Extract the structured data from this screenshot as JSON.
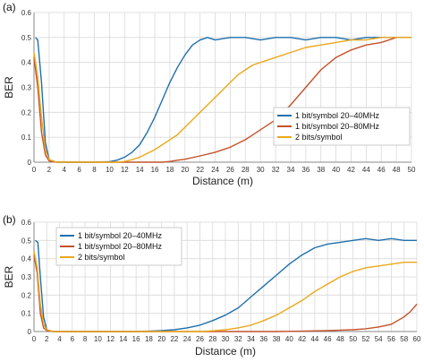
{
  "chart_data": [
    {
      "panel": "(a)",
      "type": "line",
      "xlabel": "Distance (m)",
      "ylabel": "BER",
      "xlim": [
        0,
        50
      ],
      "ylim": [
        0,
        0.6
      ],
      "xticks": [
        0,
        2,
        4,
        6,
        8,
        10,
        12,
        14,
        16,
        18,
        20,
        22,
        24,
        26,
        28,
        30,
        32,
        34,
        36,
        38,
        40,
        42,
        44,
        46,
        48,
        50
      ],
      "yticks": [
        0,
        0.1,
        0.2,
        0.3,
        0.4,
        0.5,
        0.6
      ],
      "ytick_labels": [
        "0",
        "0.1",
        "0.2",
        "0.3",
        "0.4",
        "0.5",
        "0.6"
      ],
      "grid": true,
      "legend_position": "right",
      "series": [
        {
          "name": "1 bit/symbol 20–40MHz",
          "color": "#1f6fad",
          "points": [
            [
              0.2,
              0.5
            ],
            [
              0.5,
              0.49
            ],
            [
              1,
              0.32
            ],
            [
              1.5,
              0.08
            ],
            [
              2,
              0.01
            ],
            [
              3,
              0
            ],
            [
              8,
              0
            ],
            [
              10,
              0.002
            ],
            [
              11,
              0.008
            ],
            [
              12,
              0.02
            ],
            [
              13,
              0.04
            ],
            [
              14,
              0.07
            ],
            [
              15,
              0.12
            ],
            [
              16,
              0.18
            ],
            [
              17,
              0.25
            ],
            [
              18,
              0.32
            ],
            [
              19,
              0.38
            ],
            [
              20,
              0.43
            ],
            [
              21,
              0.47
            ],
            [
              22,
              0.49
            ],
            [
              23,
              0.5
            ],
            [
              24,
              0.49
            ],
            [
              26,
              0.5
            ],
            [
              28,
              0.5
            ],
            [
              30,
              0.49
            ],
            [
              32,
              0.5
            ],
            [
              34,
              0.5
            ],
            [
              36,
              0.49
            ],
            [
              38,
              0.5
            ],
            [
              40,
              0.5
            ],
            [
              42,
              0.49
            ],
            [
              44,
              0.5
            ],
            [
              46,
              0.5
            ],
            [
              48,
              0.5
            ],
            [
              50,
              0.5
            ]
          ]
        },
        {
          "name": "1 bit/symbol 20–80MHz",
          "color": "#c4522a",
          "points": [
            [
              0,
              0.42
            ],
            [
              0.5,
              0.3
            ],
            [
              1,
              0.12
            ],
            [
              1.5,
              0.03
            ],
            [
              2,
              0.005
            ],
            [
              3,
              0
            ],
            [
              17,
              0
            ],
            [
              18,
              0.003
            ],
            [
              19,
              0.008
            ],
            [
              20,
              0.012
            ],
            [
              22,
              0.025
            ],
            [
              24,
              0.04
            ],
            [
              26,
              0.06
            ],
            [
              28,
              0.09
            ],
            [
              30,
              0.13
            ],
            [
              32,
              0.17
            ],
            [
              34,
              0.23
            ],
            [
              36,
              0.3
            ],
            [
              38,
              0.37
            ],
            [
              40,
              0.42
            ],
            [
              42,
              0.45
            ],
            [
              44,
              0.47
            ],
            [
              46,
              0.48
            ],
            [
              48,
              0.5
            ],
            [
              50,
              0.5
            ]
          ]
        },
        {
          "name": "2 bits/symbol",
          "color": "#eaa81c",
          "points": [
            [
              0,
              0.44
            ],
            [
              0.5,
              0.34
            ],
            [
              1,
              0.18
            ],
            [
              1.5,
              0.05
            ],
            [
              2,
              0.01
            ],
            [
              3,
              0
            ],
            [
              11,
              0
            ],
            [
              12,
              0.003
            ],
            [
              13,
              0.01
            ],
            [
              14,
              0.02
            ],
            [
              15,
              0.035
            ],
            [
              16,
              0.05
            ],
            [
              17,
              0.07
            ],
            [
              18,
              0.09
            ],
            [
              19,
              0.11
            ],
            [
              20,
              0.14
            ],
            [
              21,
              0.17
            ],
            [
              22,
              0.2
            ],
            [
              23,
              0.23
            ],
            [
              24,
              0.26
            ],
            [
              25,
              0.29
            ],
            [
              26,
              0.32
            ],
            [
              27,
              0.35
            ],
            [
              28,
              0.37
            ],
            [
              29,
              0.39
            ],
            [
              30,
              0.4
            ],
            [
              32,
              0.42
            ],
            [
              34,
              0.44
            ],
            [
              36,
              0.46
            ],
            [
              38,
              0.47
            ],
            [
              40,
              0.48
            ],
            [
              42,
              0.49
            ],
            [
              44,
              0.49
            ],
            [
              46,
              0.5
            ],
            [
              48,
              0.5
            ],
            [
              50,
              0.5
            ]
          ]
        }
      ]
    },
    {
      "panel": "(b)",
      "type": "line",
      "xlabel": "Distance (m)",
      "ylabel": "BER",
      "xlim": [
        0,
        60
      ],
      "ylim": [
        0,
        0.6
      ],
      "xticks": [
        0,
        2,
        4,
        6,
        8,
        10,
        12,
        14,
        16,
        18,
        20,
        22,
        24,
        26,
        28,
        30,
        32,
        34,
        36,
        38,
        40,
        42,
        44,
        46,
        48,
        50,
        52,
        54,
        56,
        58,
        60
      ],
      "yticks": [
        0,
        0.1,
        0.2,
        0.3,
        0.4,
        0.5,
        0.6
      ],
      "ytick_labels": [
        "0",
        "0.1",
        "0.2",
        "0.3",
        "0.4",
        "0.5",
        "0.6"
      ],
      "grid": true,
      "legend_position": "top-left",
      "series": [
        {
          "name": "1 bit/symbol 20–40MHz",
          "color": "#1f6fad",
          "points": [
            [
              0.2,
              0.5
            ],
            [
              0.6,
              0.49
            ],
            [
              1,
              0.3
            ],
            [
              1.5,
              0.08
            ],
            [
              2,
              0.01
            ],
            [
              3,
              0
            ],
            [
              16,
              0
            ],
            [
              18,
              0.002
            ],
            [
              20,
              0.005
            ],
            [
              22,
              0.01
            ],
            [
              24,
              0.02
            ],
            [
              26,
              0.035
            ],
            [
              28,
              0.06
            ],
            [
              30,
              0.09
            ],
            [
              32,
              0.13
            ],
            [
              34,
              0.19
            ],
            [
              36,
              0.25
            ],
            [
              38,
              0.31
            ],
            [
              40,
              0.37
            ],
            [
              42,
              0.42
            ],
            [
              44,
              0.46
            ],
            [
              46,
              0.48
            ],
            [
              48,
              0.49
            ],
            [
              50,
              0.5
            ],
            [
              52,
              0.51
            ],
            [
              54,
              0.5
            ],
            [
              56,
              0.51
            ],
            [
              58,
              0.5
            ],
            [
              60,
              0.5
            ]
          ]
        },
        {
          "name": "1 bit/symbol 20–80MHz",
          "color": "#c4522a",
          "points": [
            [
              0,
              0.42
            ],
            [
              0.5,
              0.32
            ],
            [
              1,
              0.1
            ],
            [
              1.5,
              0.02
            ],
            [
              2,
              0.005
            ],
            [
              3,
              0
            ],
            [
              38,
              0
            ],
            [
              42,
              0.002
            ],
            [
              46,
              0.005
            ],
            [
              50,
              0.01
            ],
            [
              52,
              0.015
            ],
            [
              54,
              0.025
            ],
            [
              56,
              0.04
            ],
            [
              58,
              0.08
            ],
            [
              59,
              0.11
            ],
            [
              60,
              0.15
            ]
          ]
        },
        {
          "name": "2 bits/symbol",
          "color": "#eaa81c",
          "points": [
            [
              0,
              0.44
            ],
            [
              0.5,
              0.35
            ],
            [
              1,
              0.15
            ],
            [
              1.5,
              0.04
            ],
            [
              2,
              0.01
            ],
            [
              3,
              0
            ],
            [
              26,
              0
            ],
            [
              28,
              0.004
            ],
            [
              30,
              0.01
            ],
            [
              32,
              0.02
            ],
            [
              34,
              0.035
            ],
            [
              36,
              0.06
            ],
            [
              38,
              0.09
            ],
            [
              40,
              0.13
            ],
            [
              42,
              0.17
            ],
            [
              44,
              0.22
            ],
            [
              46,
              0.26
            ],
            [
              48,
              0.3
            ],
            [
              50,
              0.33
            ],
            [
              52,
              0.35
            ],
            [
              54,
              0.36
            ],
            [
              56,
              0.37
            ],
            [
              58,
              0.38
            ],
            [
              60,
              0.38
            ]
          ]
        }
      ]
    }
  ]
}
